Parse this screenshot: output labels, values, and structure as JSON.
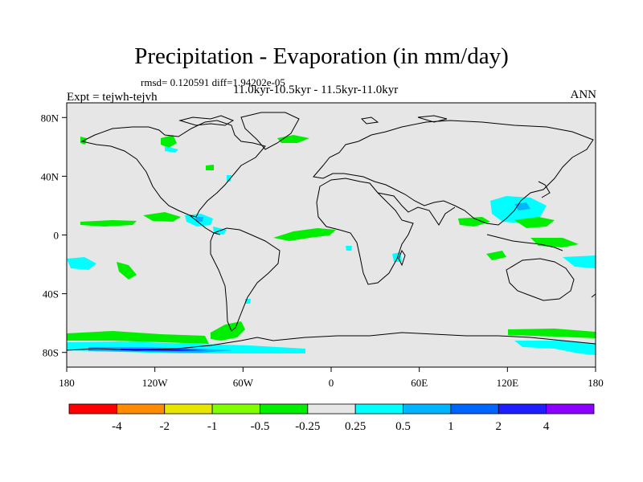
{
  "title": "Precipitation - Evaporation (in mm/day)",
  "stats": {
    "rmsd_label": "rmsd=",
    "rmsd_value": "0.120591",
    "diff_label": "diff=",
    "diff_value": "1.94202e-05"
  },
  "experiment": "Expt = tejwh-tejvh",
  "period": "11.0kyr-10.5kyr - 11.5kyr-11.0kyr",
  "season": "ANN",
  "axes": {
    "x_ticks": [
      "180",
      "120W",
      "60W",
      "0",
      "60E",
      "120E",
      "180"
    ],
    "y_ticks": [
      "80N",
      "40N",
      "0",
      "40S",
      "80S"
    ]
  },
  "colorbar": {
    "labels": [
      "-4",
      "-2",
      "-1",
      "-0.5",
      "-0.25",
      "0.25",
      "0.5",
      "1",
      "2",
      "4"
    ],
    "colors": [
      "#ff0000",
      "#ff8c00",
      "#e6e600",
      "#7fff00",
      "#00ee00",
      "#e6e6e6",
      "#00ffff",
      "#00b4ff",
      "#0064ff",
      "#1e1eff",
      "#8c00ff"
    ]
  },
  "colors": {
    "ocean": "#e6e6e6",
    "coast": "#000000",
    "frame": "#000000"
  }
}
